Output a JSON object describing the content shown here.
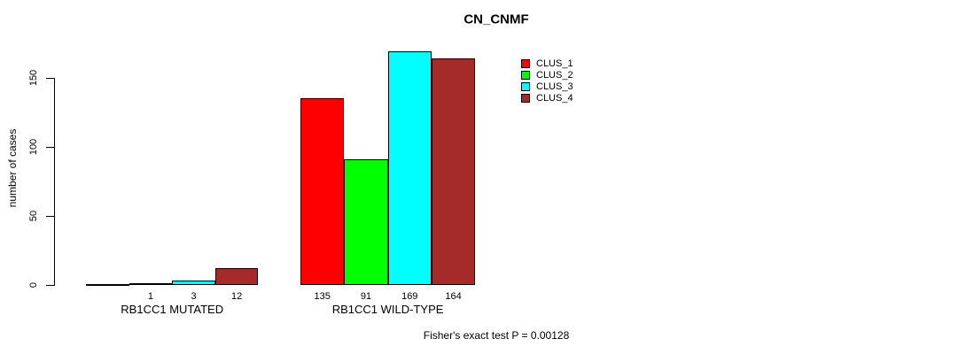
{
  "chart_data": {
    "type": "bar",
    "title": "CN_CNMF",
    "ylabel": "number of cases",
    "ylim": [
      0,
      170
    ],
    "yticks": [
      0,
      50,
      100,
      150
    ],
    "grid": false,
    "legend_position": "top-right",
    "series": [
      {
        "name": "CLUS_1",
        "color": "#ff0000"
      },
      {
        "name": "CLUS_2",
        "color": "#00ff00"
      },
      {
        "name": "CLUS_3",
        "color": "#00ffff"
      },
      {
        "name": "CLUS_4",
        "color": "#a52a2a"
      }
    ],
    "groups": [
      {
        "label": "RB1CC1 MUTATED",
        "values": [
          0,
          1,
          3,
          12
        ],
        "value_labels": [
          "",
          "1",
          "3",
          "12"
        ]
      },
      {
        "label": "RB1CC1 WILD-TYPE",
        "values": [
          135,
          91,
          169,
          164
        ],
        "value_labels": [
          "135",
          "91",
          "169",
          "164"
        ]
      }
    ],
    "annotation": "Fisher's exact test P = 0.00128"
  }
}
